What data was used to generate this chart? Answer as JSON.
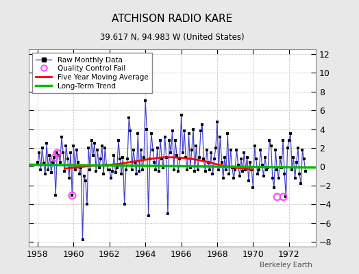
{
  "title": "ATCHISON RADIO KARE",
  "subtitle": "39.617 N, 94.983 W (United States)",
  "attribution": "Berkeley Earth",
  "xlim": [
    1957.5,
    1973.5
  ],
  "ylim": [
    -8.5,
    12.5
  ],
  "yticks": [
    -8,
    -6,
    -4,
    -2,
    0,
    2,
    4,
    6,
    8,
    10,
    12
  ],
  "xticks": [
    1958,
    1960,
    1962,
    1964,
    1966,
    1968,
    1970,
    1972
  ],
  "bg_color": "#e8e8e8",
  "plot_bg_color": "#ffffff",
  "raw_line_color": "#4444cc",
  "raw_marker_color": "#000000",
  "moving_avg_color": "#ff0000",
  "trend_color": "#00bb00",
  "qc_fail_color": "#ff44ff",
  "raw_data_times": [
    1958.0,
    1958.083,
    1958.167,
    1958.25,
    1958.333,
    1958.417,
    1958.5,
    1958.583,
    1958.667,
    1958.75,
    1958.833,
    1958.917,
    1959.0,
    1959.083,
    1959.167,
    1959.25,
    1959.333,
    1959.417,
    1959.5,
    1959.583,
    1959.667,
    1959.75,
    1959.833,
    1959.917,
    1960.0,
    1960.083,
    1960.167,
    1960.25,
    1960.333,
    1960.417,
    1960.5,
    1960.583,
    1960.667,
    1960.75,
    1960.833,
    1960.917,
    1961.0,
    1961.083,
    1961.167,
    1961.25,
    1961.333,
    1961.417,
    1961.5,
    1961.583,
    1961.667,
    1961.75,
    1961.833,
    1961.917,
    1962.0,
    1962.083,
    1962.167,
    1962.25,
    1962.333,
    1962.417,
    1962.5,
    1962.583,
    1962.667,
    1962.75,
    1962.833,
    1962.917,
    1963.0,
    1963.083,
    1963.167,
    1963.25,
    1963.333,
    1963.417,
    1963.5,
    1963.583,
    1963.667,
    1963.75,
    1963.833,
    1963.917,
    1964.0,
    1964.083,
    1964.167,
    1964.25,
    1964.333,
    1964.417,
    1964.5,
    1964.583,
    1964.667,
    1964.75,
    1964.833,
    1964.917,
    1965.0,
    1965.083,
    1965.167,
    1965.25,
    1965.333,
    1965.417,
    1965.5,
    1965.583,
    1965.667,
    1965.75,
    1965.833,
    1965.917,
    1966.0,
    1966.083,
    1966.167,
    1966.25,
    1966.333,
    1966.417,
    1966.5,
    1966.583,
    1966.667,
    1966.75,
    1966.833,
    1966.917,
    1967.0,
    1967.083,
    1967.167,
    1967.25,
    1967.333,
    1967.417,
    1967.5,
    1967.583,
    1967.667,
    1967.75,
    1967.833,
    1967.917,
    1968.0,
    1968.083,
    1968.167,
    1968.25,
    1968.333,
    1968.417,
    1968.5,
    1968.583,
    1968.667,
    1968.75,
    1968.833,
    1968.917,
    1969.0,
    1969.083,
    1969.167,
    1969.25,
    1969.333,
    1969.417,
    1969.5,
    1969.583,
    1969.667,
    1969.75,
    1969.833,
    1969.917,
    1970.0,
    1970.083,
    1970.167,
    1970.25,
    1970.333,
    1970.417,
    1970.5,
    1970.583,
    1970.667,
    1970.75,
    1970.833,
    1970.917,
    1971.0,
    1971.083,
    1971.167,
    1971.25,
    1971.333,
    1971.417,
    1971.5,
    1971.583,
    1971.667,
    1971.75,
    1971.833,
    1971.917,
    1972.0,
    1972.083,
    1972.167,
    1972.25,
    1972.333,
    1972.417,
    1972.5,
    1972.583,
    1972.667,
    1972.75,
    1972.833,
    1972.917
  ],
  "raw_data_values": [
    0.5,
    1.5,
    -0.3,
    2.0,
    0.4,
    -0.8,
    2.5,
    -0.3,
    1.2,
    -0.6,
    0.5,
    1.0,
    -3.0,
    1.5,
    1.2,
    0.5,
    3.2,
    1.5,
    -0.5,
    2.2,
    0.8,
    -1.2,
    1.5,
    -3.0,
    2.2,
    -0.3,
    1.8,
    0.5,
    -0.8,
    -0.1,
    -7.8,
    -1.0,
    -1.5,
    -4.0,
    2.0,
    -0.3,
    2.8,
    1.2,
    2.5,
    -0.5,
    1.8,
    -0.1,
    0.8,
    2.2,
    -0.8,
    2.0,
    0.2,
    -0.3,
    -0.3,
    -1.2,
    -0.5,
    1.2,
    -0.6,
    -0.1,
    2.8,
    0.8,
    -0.8,
    1.0,
    -4.0,
    -0.3,
    0.8,
    5.2,
    3.8,
    -0.3,
    1.8,
    0.5,
    -0.8,
    3.5,
    -0.5,
    1.8,
    -0.3,
    1.0,
    7.0,
    4.0,
    -5.2,
    0.8,
    3.5,
    1.8,
    0.5,
    -0.3,
    2.0,
    -0.5,
    2.8,
    0.8,
    -0.1,
    3.2,
    1.0,
    -5.0,
    2.8,
    1.5,
    3.8,
    -0.3,
    2.8,
    1.2,
    -0.5,
    0.8,
    5.5,
    1.5,
    3.8,
    1.0,
    -0.3,
    3.5,
    -0.1,
    1.8,
    4.0,
    -0.5,
    2.2,
    -0.3,
    1.0,
    3.8,
    4.5,
    0.8,
    -0.5,
    1.8,
    0.5,
    -0.3,
    1.5,
    -0.8,
    0.8,
    2.0,
    4.8,
    -0.3,
    3.2,
    0.5,
    -1.2,
    1.0,
    -0.3,
    3.5,
    -0.8,
    1.8,
    -0.1,
    -1.2,
    -0.3,
    1.8,
    0.2,
    -1.0,
    0.8,
    -0.5,
    1.5,
    -0.3,
    1.0,
    -1.5,
    0.5,
    -0.3,
    -2.2,
    2.2,
    0.8,
    -0.8,
    -0.3,
    1.8,
    0.2,
    -1.0,
    1.0,
    -0.3,
    -0.1,
    2.8,
    2.2,
    -1.2,
    -2.2,
    1.8,
    -0.3,
    -1.2,
    1.0,
    -0.1,
    2.8,
    -0.8,
    -3.2,
    2.0,
    2.8,
    3.5,
    -0.3,
    1.0,
    -1.2,
    0.5,
    2.0,
    -0.8,
    -1.8,
    1.8,
    0.8,
    -0.5
  ],
  "qc_fail_times": [
    1958.917,
    1959.083,
    1959.917,
    1971.333,
    1971.667
  ],
  "qc_fail_values": [
    1.0,
    1.5,
    -3.0,
    -3.2,
    -3.2
  ],
  "moving_avg_times": [
    1959.5,
    1960.0,
    1960.5,
    1961.0,
    1961.5,
    1962.0,
    1962.5,
    1963.0,
    1963.5,
    1964.0,
    1964.5,
    1965.0,
    1965.5,
    1966.0,
    1966.5,
    1967.0,
    1967.5,
    1968.0,
    1968.5,
    1969.0,
    1969.5,
    1970.0
  ],
  "moving_avg_values": [
    -0.2,
    -0.1,
    0.0,
    0.1,
    0.15,
    0.2,
    0.3,
    0.45,
    0.6,
    0.75,
    0.9,
    1.0,
    1.0,
    0.95,
    0.85,
    0.7,
    0.5,
    0.25,
    0.05,
    -0.1,
    -0.2,
    -0.3
  ],
  "trend_times": [
    1957.5,
    1973.5
  ],
  "trend_values": [
    0.22,
    -0.08
  ],
  "legend_labels": [
    "Raw Monthly Data",
    "Quality Control Fail",
    "Five Year Moving Average",
    "Long-Term Trend"
  ]
}
